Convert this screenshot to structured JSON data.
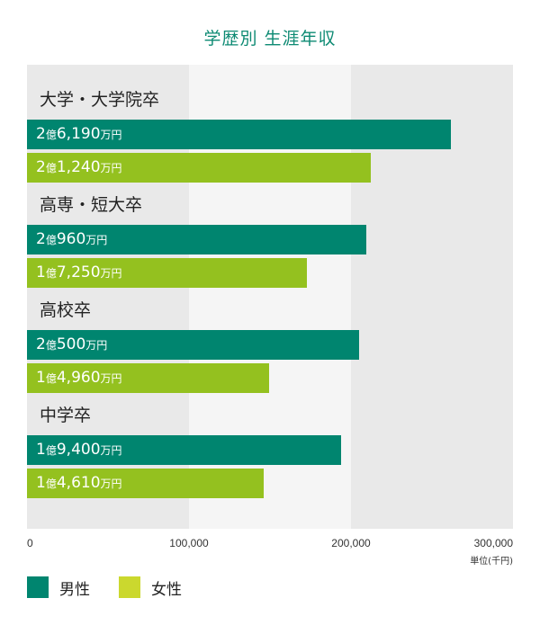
{
  "chart_data": {
    "type": "bar",
    "orientation": "horizontal",
    "title": "学歴別 生涯年収",
    "unit_label": "単位(千円)",
    "xlim": [
      0,
      300000
    ],
    "xticks": [
      "0",
      "100,000",
      "200,000",
      "300,000"
    ],
    "xtick_values": [
      0,
      100000,
      200000,
      300000
    ],
    "categories": [
      "大学・大学院卒",
      "高専・短大卒",
      "高校卒",
      "中学卒"
    ],
    "series": [
      {
        "name": "男性",
        "color": "#00856f",
        "values": [
          261900,
          209600,
          205000,
          194000
        ],
        "labels": [
          [
            "2",
            "億",
            "6,190",
            "万円"
          ],
          [
            "2",
            "億",
            "960",
            "万円"
          ],
          [
            "2",
            "億",
            "500",
            "万円"
          ],
          [
            "1",
            "億",
            "9,400",
            "万円"
          ]
        ]
      },
      {
        "name": "女性",
        "color": "#94c11f",
        "values": [
          212400,
          172500,
          149600,
          146100
        ],
        "labels": [
          [
            "2",
            "億",
            "1,240",
            "万円"
          ],
          [
            "1",
            "億",
            "7,250",
            "万円"
          ],
          [
            "1",
            "億",
            "4,960",
            "万円"
          ],
          [
            "1",
            "億",
            "4,610",
            "万円"
          ]
        ]
      }
    ],
    "band_colors": [
      "#e9e9e9",
      "#f5f5f5",
      "#e9e9e9"
    ],
    "legend_position": "bottom-left"
  }
}
